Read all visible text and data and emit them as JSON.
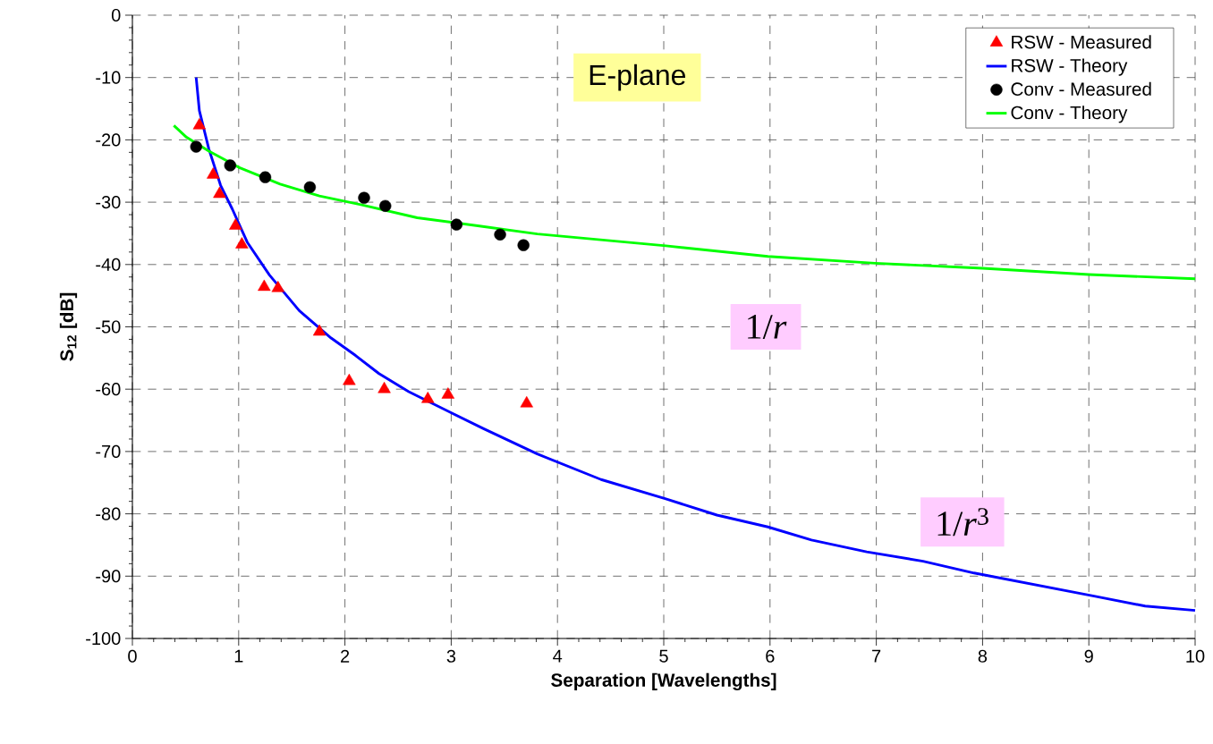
{
  "chart_data": {
    "type": "line",
    "xlabel": "Separation [Wavelengths]",
    "ylabel": "S$_{12}$ [dB]",
    "xlim": [
      0,
      10
    ],
    "ylim": [
      -100,
      0
    ],
    "xticks": [
      0,
      1,
      2,
      3,
      4,
      5,
      6,
      7,
      8,
      9,
      10
    ],
    "yticks": [
      -100,
      -90,
      -80,
      -70,
      -60,
      -50,
      -40,
      -30,
      -20,
      -10,
      0
    ],
    "grid": true,
    "legend": "top right",
    "annotations": [
      "E-plane",
      "1/*r*",
      "1/*r*$^{3}$"
    ],
    "series": [
      {
        "name": "RSW - Measured",
        "type": "scatter",
        "marker": "triangle",
        "color": "#ff0000",
        "x": [
          0.63,
          0.76,
          0.82,
          0.97,
          1.03,
          1.24,
          1.37,
          1.76,
          2.04,
          2.37,
          2.78,
          2.97,
          3.71
        ],
        "values": [
          -17.7,
          -25.6,
          -28.7,
          -33.8,
          -36.8,
          -43.6,
          -43.8,
          -50.8,
          -58.7,
          -60.0,
          -61.6,
          -60.9,
          -62.3
        ]
      },
      {
        "name": "RSW - Theory",
        "type": "line",
        "marker": "none",
        "color": "#0000ff",
        "x": [
          0.6,
          0.63,
          0.72,
          0.83,
          0.94,
          1.08,
          1.29,
          1.57,
          1.87,
          2.1,
          2.32,
          2.6,
          2.99,
          3.3,
          3.81,
          4.41,
          5.02,
          5.5,
          5.98,
          6.39,
          6.91,
          7.44,
          7.92,
          9.05,
          9.53,
          10
        ],
        "values": [
          -10.0,
          -15.3,
          -21.5,
          -27.3,
          -31.1,
          -36.4,
          -41.7,
          -47.4,
          -51.8,
          -54.6,
          -57.5,
          -60.4,
          -63.7,
          -66.3,
          -70.4,
          -74.5,
          -77.6,
          -80.2,
          -82.1,
          -84.2,
          -86.1,
          -87.6,
          -89.5,
          -93.2,
          -94.8,
          -95.5
        ]
      },
      {
        "name": "Conv - Measured",
        "type": "scatter",
        "marker": "circle",
        "color": "#000000",
        "x": [
          0.6,
          0.92,
          1.25,
          1.67,
          2.18,
          2.38,
          3.05,
          3.46,
          3.68
        ],
        "values": [
          -21.1,
          -24.1,
          -26.0,
          -27.6,
          -29.3,
          -30.6,
          -33.6,
          -35.2,
          -36.9
        ]
      },
      {
        "name": "Conv - Theory",
        "type": "line",
        "marker": "none",
        "color": "#00ff00",
        "x": [
          0.39,
          0.51,
          0.72,
          1.0,
          1.39,
          1.76,
          2.15,
          2.68,
          3.25,
          3.81,
          5.02,
          5.98,
          6.99,
          8.0,
          9.0,
          10
        ],
        "values": [
          -17.7,
          -19.6,
          -21.8,
          -24.4,
          -27.1,
          -29.0,
          -30.4,
          -32.5,
          -33.8,
          -35.1,
          -37.0,
          -38.7,
          -39.8,
          -40.6,
          -41.6,
          -42.3
        ]
      }
    ]
  }
}
